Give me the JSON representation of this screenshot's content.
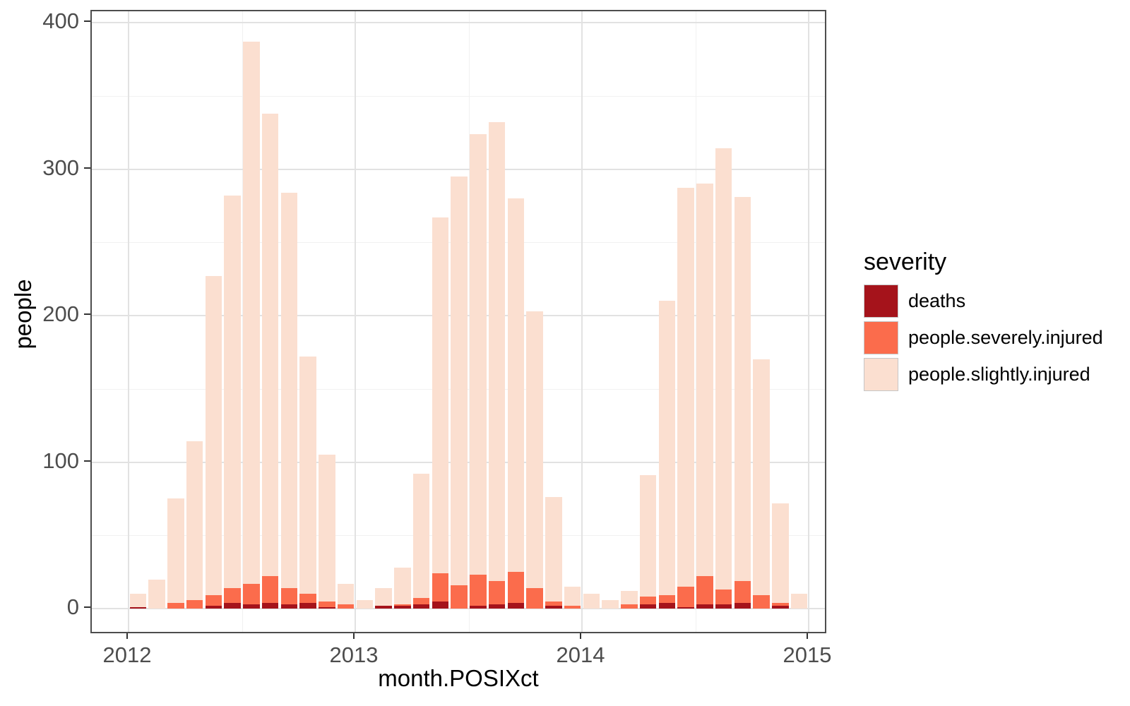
{
  "chart_data": {
    "type": "bar",
    "stacked": true,
    "title": "",
    "xlabel": "month.POSIXct",
    "ylabel": "people",
    "x_tick_labels": [
      "2012",
      "2013",
      "2014",
      "2015"
    ],
    "y_tick_labels": [
      "0",
      "100",
      "200",
      "300",
      "400"
    ],
    "y_major_values": [
      0,
      100,
      200,
      300,
      400
    ],
    "y_minor_values": [
      50,
      150,
      250,
      350
    ],
    "ylim": [
      0,
      400
    ],
    "grid": "on",
    "legend": {
      "title": "severity",
      "position": "right",
      "entries": [
        "deaths",
        "people.severely.injured",
        "people.slightly.injured"
      ]
    },
    "months": [
      "2012-01",
      "2012-02",
      "2012-03",
      "2012-04",
      "2012-05",
      "2012-06",
      "2012-07",
      "2012-08",
      "2012-09",
      "2012-10",
      "2012-11",
      "2012-12",
      "2013-01",
      "2013-02",
      "2013-03",
      "2013-04",
      "2013-05",
      "2013-06",
      "2013-07",
      "2013-08",
      "2013-09",
      "2013-10",
      "2013-11",
      "2013-12",
      "2014-01",
      "2014-02",
      "2014-03",
      "2014-04",
      "2014-05",
      "2014-06",
      "2014-07",
      "2014-08",
      "2014-09",
      "2014-10",
      "2014-11",
      "2014-12"
    ],
    "series": [
      {
        "name": "deaths",
        "color": "#A5131B",
        "values": [
          1,
          0,
          0,
          0,
          2,
          4,
          3,
          4,
          3,
          4,
          1,
          0,
          0,
          2,
          2,
          3,
          5,
          0,
          2,
          3,
          4,
          0,
          2,
          0,
          0,
          0,
          0,
          3,
          4,
          1,
          3,
          3,
          4,
          0,
          2,
          0
        ]
      },
      {
        "name": "people.severely.injured",
        "color": "#FB6C4C",
        "values": [
          0,
          0,
          4,
          6,
          7,
          10,
          14,
          18,
          11,
          6,
          4,
          3,
          0,
          0,
          1,
          4,
          19,
          16,
          21,
          16,
          21,
          14,
          3,
          2,
          0,
          0,
          3,
          5,
          5,
          14,
          19,
          10,
          15,
          9,
          2,
          0
        ]
      },
      {
        "name": "people.slightly.injured",
        "color": "#FBDFD0",
        "values": [
          9,
          20,
          71,
          108,
          218,
          268,
          370,
          316,
          270,
          162,
          100,
          14,
          6,
          12,
          25,
          85,
          243,
          279,
          301,
          313,
          255,
          189,
          71,
          13,
          10,
          6,
          9,
          83,
          201,
          272,
          268,
          301,
          262,
          161,
          68,
          10
        ]
      }
    ],
    "monthly_totals": [
      10,
      20,
      75,
      114,
      227,
      282,
      387,
      338,
      284,
      172,
      105,
      17,
      6,
      14,
      28,
      92,
      267,
      295,
      324,
      332,
      280,
      203,
      76,
      15,
      10,
      6,
      12,
      91,
      210,
      287,
      290,
      314,
      281,
      170,
      72,
      10
    ]
  }
}
